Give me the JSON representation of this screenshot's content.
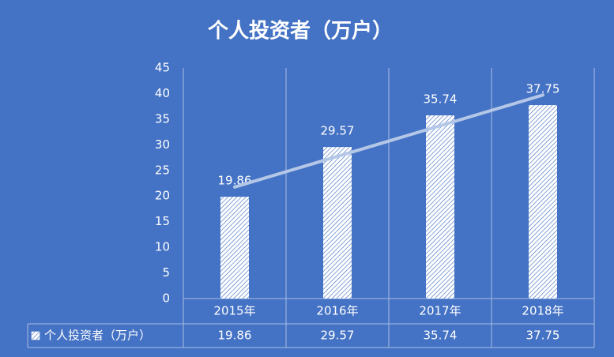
{
  "chart_data": {
    "type": "bar",
    "title": "个人投资者（万户）",
    "categories": [
      "2015年",
      "2016年",
      "2017年",
      "2018年"
    ],
    "series": [
      {
        "name": "个人投资者（万户）",
        "color": "#ffffff",
        "values": [
          19.86,
          29.57,
          35.74,
          37.75
        ]
      }
    ],
    "ylim": [
      0,
      45
    ],
    "yticks": [
      0,
      5,
      10,
      15,
      20,
      25,
      30,
      35,
      40,
      45
    ],
    "trendline": "linear",
    "data_table": true,
    "data_labels": true
  }
}
